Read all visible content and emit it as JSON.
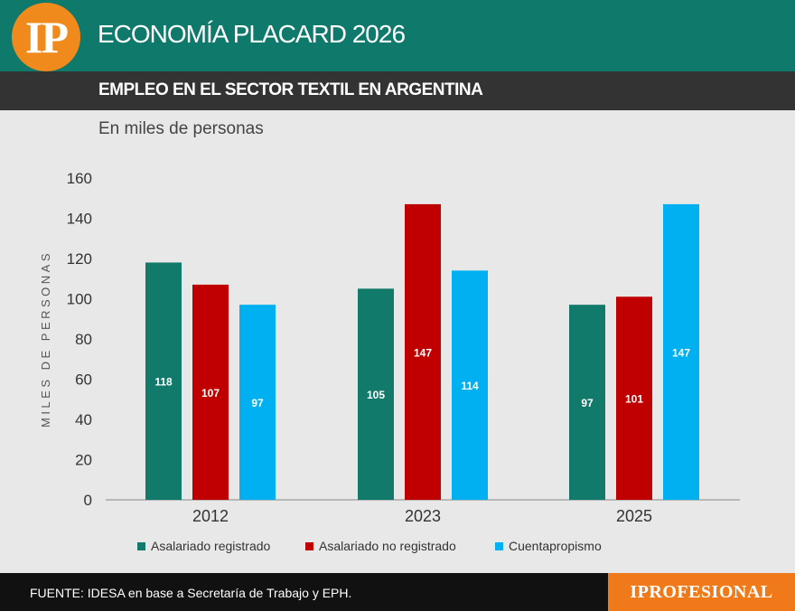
{
  "header": {
    "logo_text": "IP",
    "title": "ECONOMÍA PLACARD 2026",
    "subtitle": "EMPLEO EN EL SECTOR TEXTIL EN ARGENTINA"
  },
  "units_note": "En miles de personas",
  "footer": {
    "source": "FUENTE: IDESA en base a Secretaría de Trabajo y EPH.",
    "brand": "IPROFESIONAL"
  },
  "colors": {
    "teal": "#117a6a",
    "red": "#c00000",
    "cyan": "#00b0f0",
    "header_bg": "#0f7a6b",
    "orange": "#f08a1c"
  },
  "chart_data": {
    "type": "bar",
    "title": "EMPLEO EN EL SECTOR TEXTIL EN ARGENTINA",
    "xlabel": "",
    "ylabel": "MILES DE PERSONAS",
    "ylim": [
      0,
      160
    ],
    "yticks": [
      0,
      20,
      40,
      60,
      80,
      100,
      120,
      140,
      160
    ],
    "categories": [
      "2012",
      "2023",
      "2025"
    ],
    "series": [
      {
        "name": "Asalariado registrado",
        "color": "#117a6a",
        "values": [
          118,
          105,
          97
        ]
      },
      {
        "name": "Asalariado no registrado",
        "color": "#c00000",
        "values": [
          107,
          147,
          101
        ]
      },
      {
        "name": "Cuentapropismo",
        "color": "#00b0f0",
        "values": [
          97,
          114,
          147
        ]
      }
    ],
    "legend_position": "bottom",
    "grid": false
  }
}
